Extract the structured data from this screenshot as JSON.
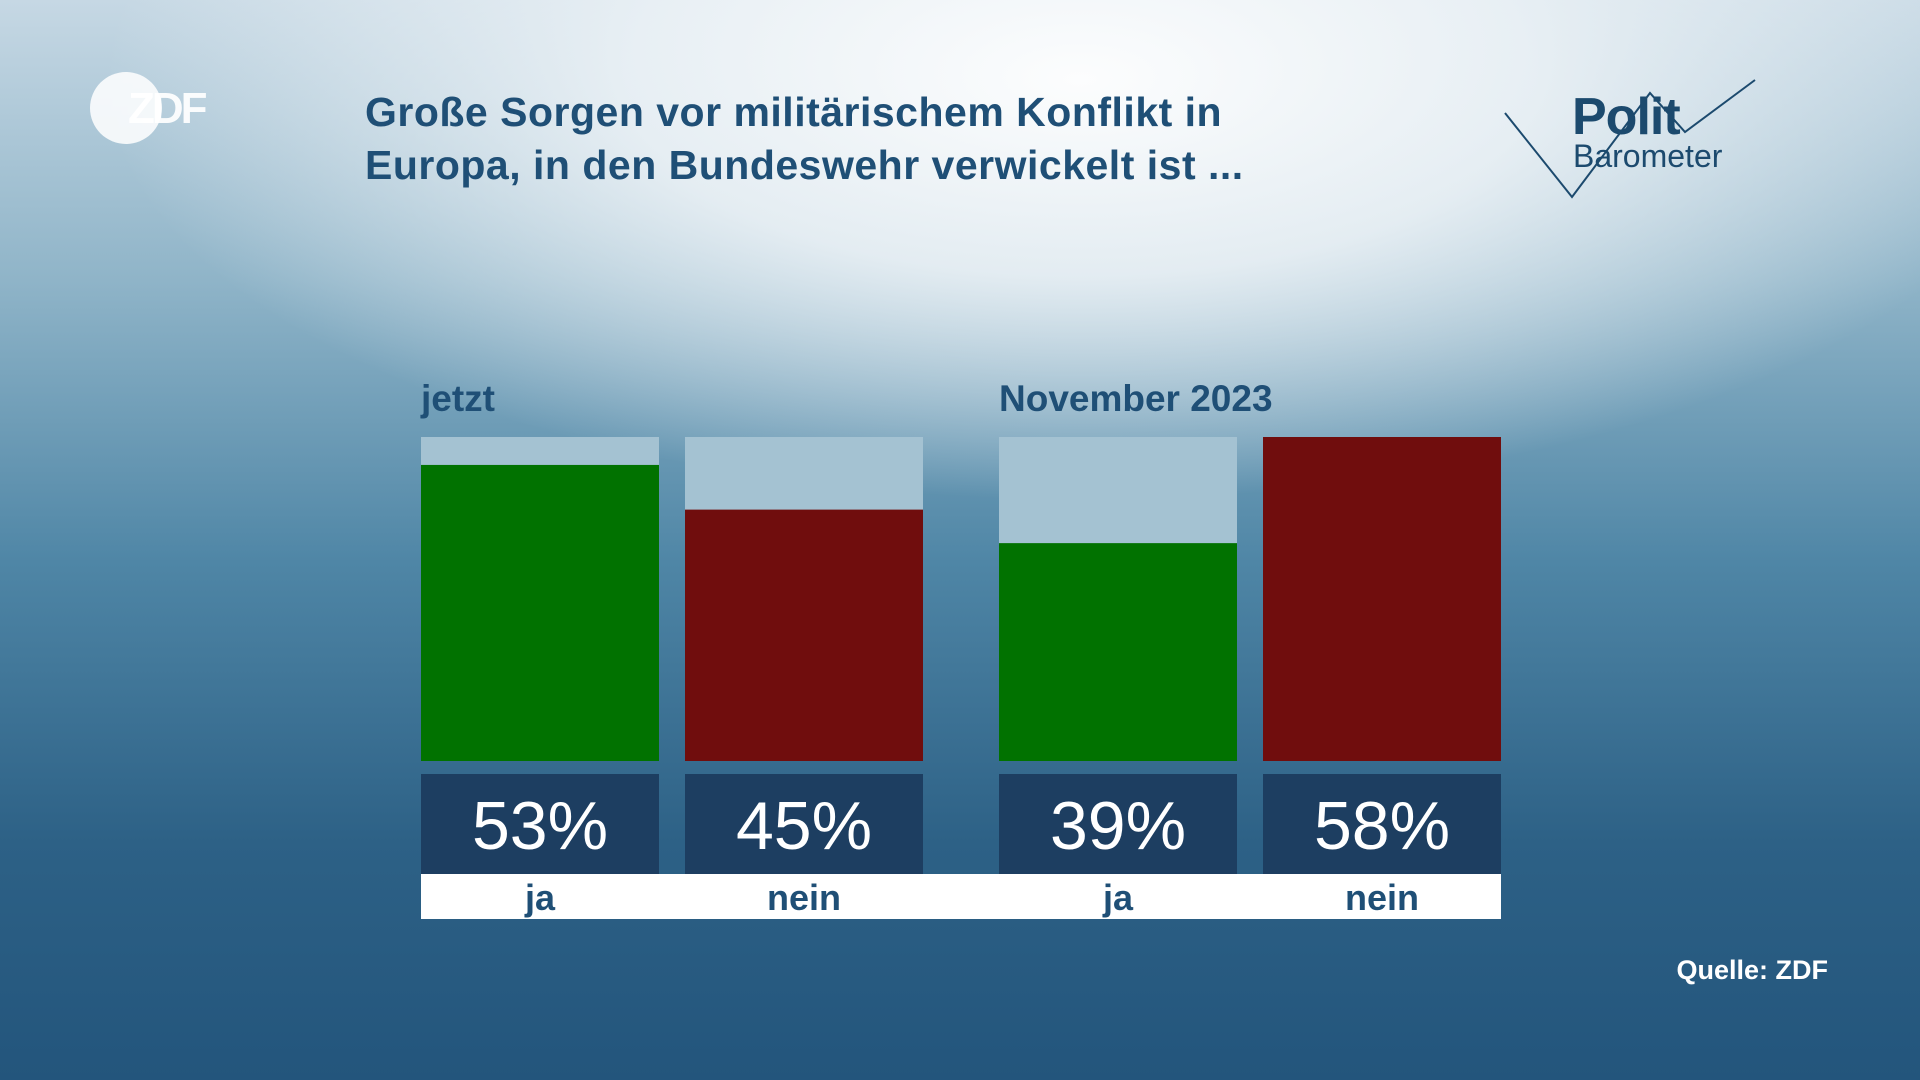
{
  "header": {
    "title": "Große Sorgen vor militärischem Konflikt in Europa, in den Bundeswehr verwickelt ist ...",
    "broadcaster_logo": "ZDF",
    "program_logo_line1": "Polit",
    "program_logo_line2": "Barometer"
  },
  "footer": {
    "source": "Quelle: ZDF"
  },
  "colors": {
    "ja": "#017200",
    "nein": "#700d0d",
    "track": "#a4c2d2",
    "value_box": "#1d3e61",
    "category_strip": "#ffffff",
    "text": "#1f4f76"
  },
  "chart_data": {
    "type": "bar",
    "title": "Große Sorgen vor militärischem Konflikt in Europa, in den Bundeswehr verwickelt ist ...",
    "ylim": [
      0,
      58
    ],
    "unit": "%",
    "groups": [
      {
        "label": "jetzt",
        "bars": [
          {
            "category": "ja",
            "value": 53
          },
          {
            "category": "nein",
            "value": 45
          }
        ]
      },
      {
        "label": "November 2023",
        "bars": [
          {
            "category": "ja",
            "value": 39
          },
          {
            "category": "nein",
            "value": 58
          }
        ]
      }
    ],
    "grid": false,
    "legend": "none"
  }
}
